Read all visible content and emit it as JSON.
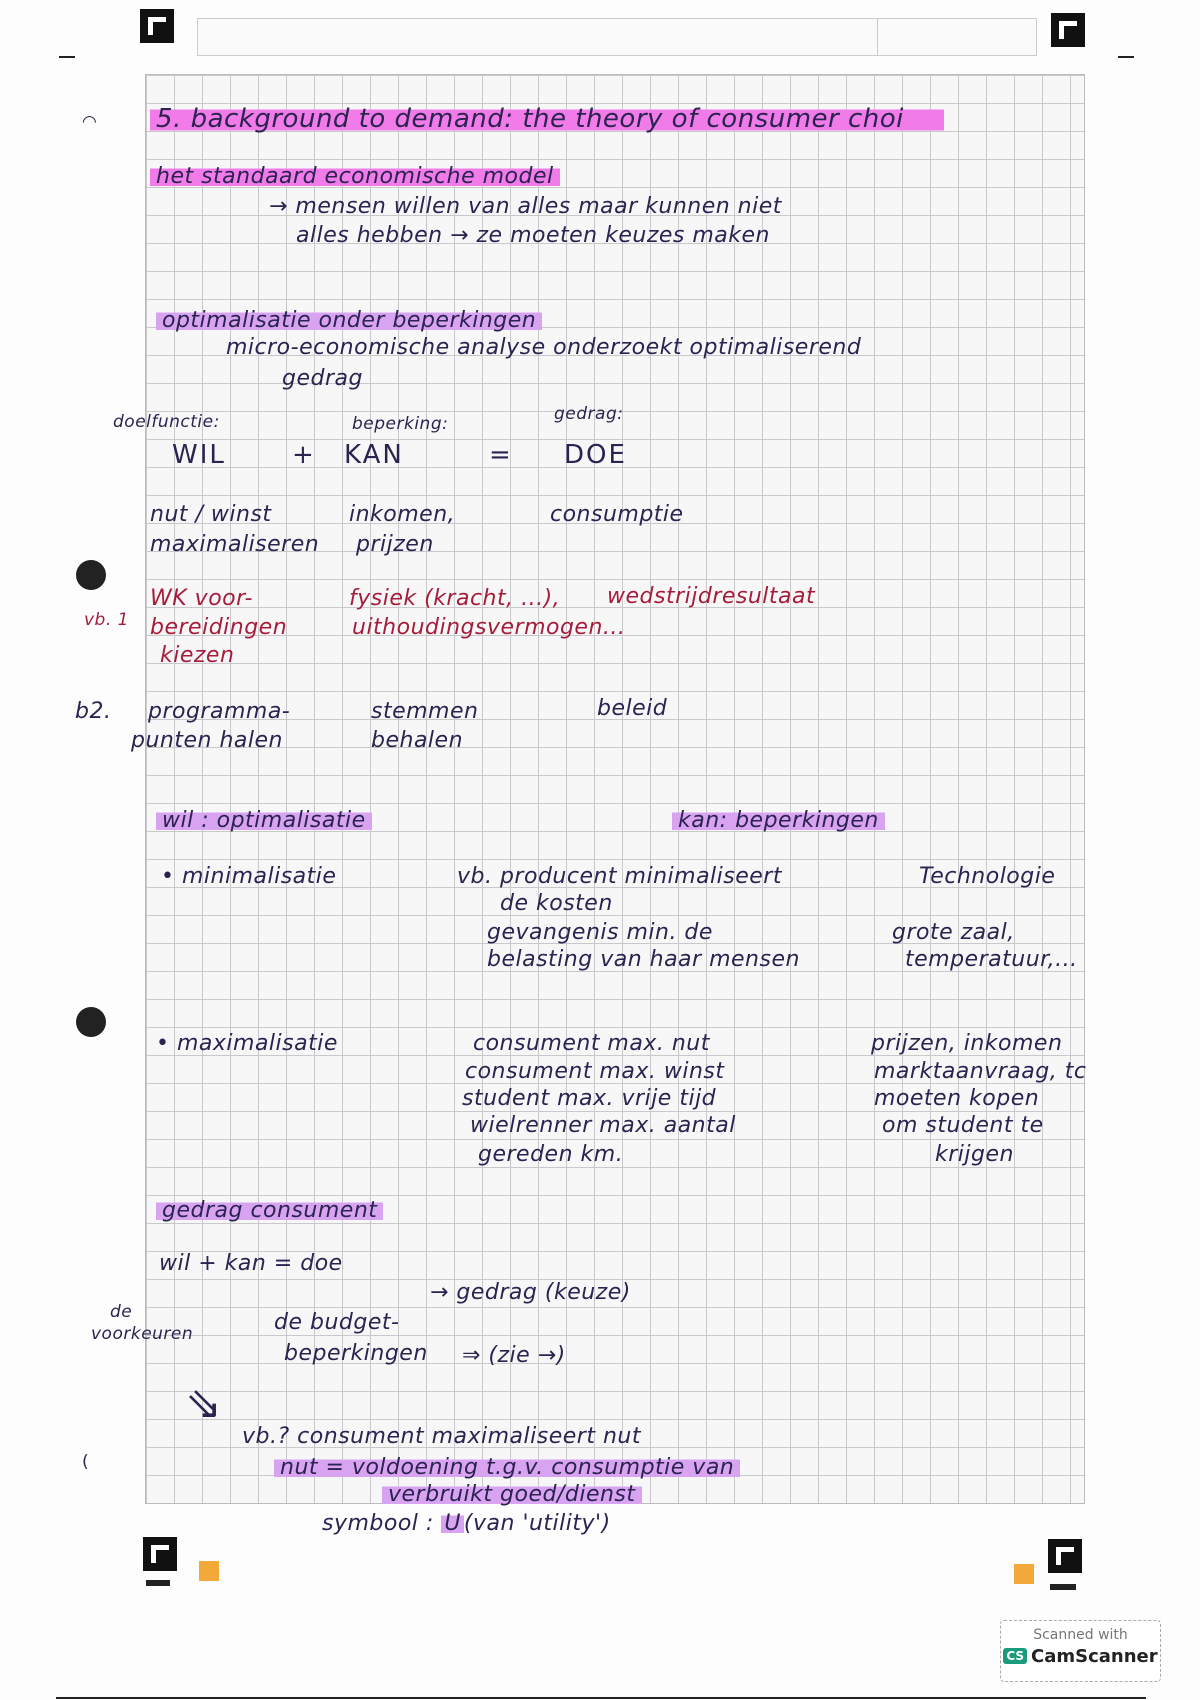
{
  "title": "5. background to demand: the theory of consumer choi",
  "section_model": {
    "heading": "het standaard economische model",
    "lines": [
      "→ mensen willen van alles maar kunnen niet",
      "alles hebben → ze moeten keuzes maken"
    ]
  },
  "section_optimalisatie": {
    "heading": "optimalisatie onder beperkingen",
    "lines": [
      "micro-economische analyse onderzoekt optimaliserend",
      "gedrag"
    ],
    "labels": [
      "doelfunctie:",
      "beperking:",
      "gedrag:"
    ],
    "equation": [
      "WIL",
      "+",
      "KAN",
      "=",
      "DOE"
    ],
    "row1": {
      "wil": [
        "nut / winst",
        "maximaliseren"
      ],
      "kan": [
        "inkomen,",
        "prijzen"
      ],
      "doe": "consumptie"
    },
    "vb1": {
      "label": "vb. 1",
      "wil": [
        "WK voor-",
        "bereidingen",
        "kiezen"
      ],
      "kan": [
        "fysiek (kracht, ...),",
        "uithoudingsvermogen..."
      ],
      "doe": "wedstrijdresultaat"
    },
    "vb2": {
      "label": "b2.",
      "wil": [
        "programma-",
        "punten halen"
      ],
      "kan": [
        "stemmen",
        "behalen"
      ],
      "doe": "beleid"
    }
  },
  "section_wil_kan": {
    "wil_heading": "wil : optimalisatie",
    "kan_heading": "kan: beperkingen",
    "minimalisatie": {
      "label": "• minimalisatie",
      "examples": [
        "vb. producent minimaliseert",
        "de kosten",
        "gevangenis min. de",
        "belasting van haar mensen"
      ],
      "beperkingen": [
        "Technologie",
        "grote zaal,",
        "temperatuur,..."
      ]
    },
    "maximalisatie": {
      "label": "• maximalisatie",
      "examples": [
        "consument max. nut",
        "consument max. winst",
        "student max. vrije tijd",
        "wielrenner max. aantal",
        "gereden km."
      ],
      "beperkingen": [
        "prijzen, inkomen",
        "marktaanvraag, tc",
        "moeten kopen",
        "om student te",
        "krijgen"
      ]
    }
  },
  "section_gedrag": {
    "heading": "gedrag consument",
    "equation": "wil + kan = doe",
    "arrow_result": "→ gedrag (keuze)",
    "wil_note": [
      "de",
      "voorkeuren"
    ],
    "kan_note": [
      "de budget-",
      "beperkingen"
    ],
    "see": "⇒ (zie →)",
    "example": "vb.? consument maximaliseert nut",
    "definition_1": "nut = voldoening t.g.v. consumptie van",
    "definition_2": "verbruikt goed/dienst",
    "symbol_prefix": "symbool : ",
    "symbol": "U",
    "symbol_suffix": "(van 'utility')"
  },
  "watermark": {
    "line1": "Scanned with",
    "logo": "CS",
    "line2": "CamScanner"
  },
  "colors": {
    "pink_highlight": "#f07be9",
    "purple_highlight": "#d8a3f1",
    "ink": "#2b2350",
    "red_ink": "#a51d3a",
    "marker_orange": "#f3a93a"
  }
}
